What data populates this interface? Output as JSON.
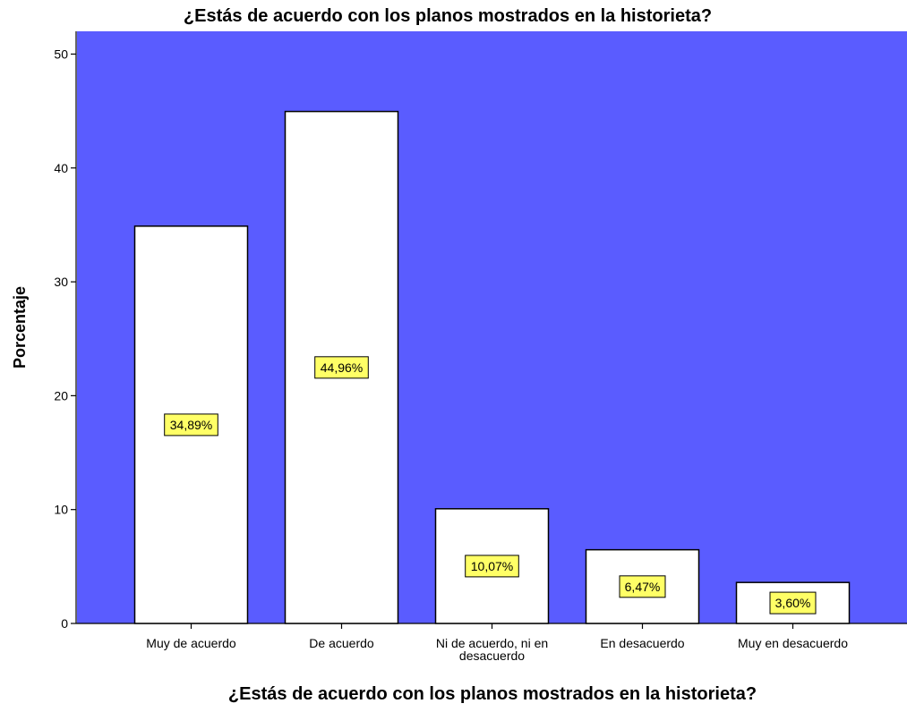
{
  "chart_data": {
    "type": "bar",
    "title": "¿Estás de acuerdo con  los planos mostrados en la historieta?",
    "xlabel": "¿Estás de acuerdo con  los planos mostrados en la historieta?",
    "ylabel": "Porcentaje",
    "categories": [
      [
        "Muy de acuerdo"
      ],
      [
        "De acuerdo"
      ],
      [
        "Ni de acuerdo, ni en",
        "desacuerdo"
      ],
      [
        "En desacuerdo"
      ],
      [
        "Muy en desacuerdo"
      ]
    ],
    "values": [
      34.89,
      44.96,
      10.07,
      6.47,
      3.6
    ],
    "data_labels": [
      "34,89%",
      "44,96%",
      "10,07%",
      "6,47%",
      "3,60%"
    ],
    "ylim": [
      0,
      52
    ],
    "yticks": [
      0,
      10,
      20,
      30,
      40,
      50
    ],
    "grid": false,
    "colors": {
      "plot_background": "#5a5cff",
      "bar_fill": "#ffffff",
      "bar_stroke": "#000000",
      "label_fill": "#ffff66"
    }
  }
}
